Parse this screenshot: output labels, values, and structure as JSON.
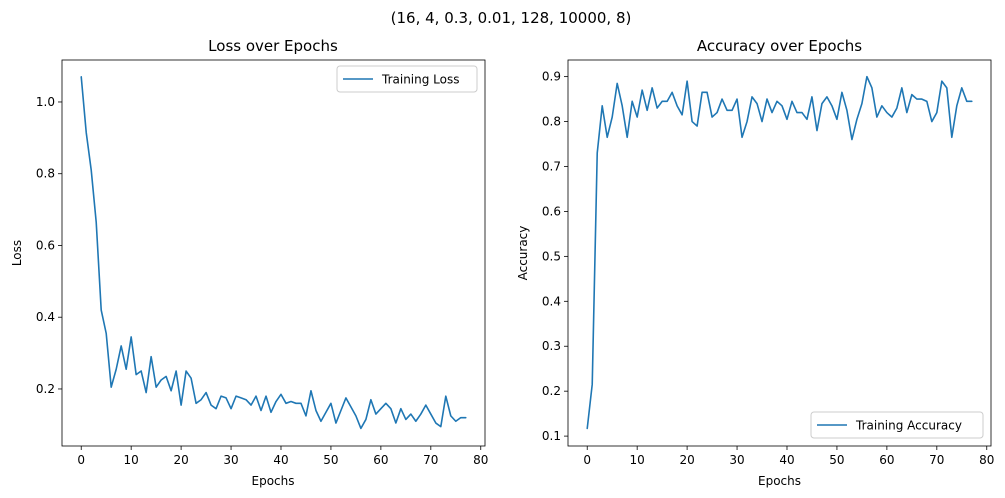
{
  "figure": {
    "suptitle": "(16, 4, 0.3, 0.01, 128, 10000, 8)"
  },
  "chart_data": [
    {
      "type": "line",
      "title": "Loss over Epochs",
      "xlabel": "Epochs",
      "ylabel": "Loss",
      "xlim": [
        -3.85,
        80.85
      ],
      "ylim": [
        0.041,
        1.117
      ],
      "xticks": [
        0,
        10,
        20,
        30,
        40,
        50,
        60,
        70,
        80
      ],
      "yticks": [
        0.2,
        0.4,
        0.6,
        0.8,
        1.0
      ],
      "ytick_labels": [
        "0.2",
        "0.4",
        "0.6",
        "0.8",
        "1.0"
      ],
      "grid": false,
      "legend_position": "top-right",
      "color": "#1f77b4",
      "series": [
        {
          "name": "Training Loss",
          "x": [
            0,
            1,
            2,
            3,
            4,
            5,
            6,
            7,
            8,
            9,
            10,
            11,
            12,
            13,
            14,
            15,
            16,
            17,
            18,
            19,
            20,
            21,
            22,
            23,
            24,
            25,
            26,
            27,
            28,
            29,
            30,
            31,
            32,
            33,
            34,
            35,
            36,
            37,
            38,
            39,
            40,
            41,
            42,
            43,
            44,
            45,
            46,
            47,
            48,
            49,
            50,
            51,
            52,
            53,
            54,
            55,
            56,
            57,
            58,
            59,
            60,
            61,
            62,
            63,
            64,
            65,
            66,
            67,
            68,
            69,
            70,
            71,
            72,
            73,
            74,
            75,
            76,
            77
          ],
          "values": [
            1.07,
            0.915,
            0.81,
            0.665,
            0.42,
            0.355,
            0.205,
            0.255,
            0.32,
            0.255,
            0.345,
            0.24,
            0.25,
            0.19,
            0.29,
            0.205,
            0.225,
            0.235,
            0.195,
            0.25,
            0.155,
            0.25,
            0.23,
            0.16,
            0.17,
            0.19,
            0.155,
            0.145,
            0.18,
            0.175,
            0.145,
            0.18,
            0.175,
            0.17,
            0.155,
            0.18,
            0.14,
            0.18,
            0.135,
            0.165,
            0.185,
            0.16,
            0.165,
            0.16,
            0.16,
            0.125,
            0.195,
            0.14,
            0.11,
            0.135,
            0.16,
            0.105,
            0.14,
            0.175,
            0.15,
            0.125,
            0.09,
            0.115,
            0.17,
            0.13,
            0.145,
            0.16,
            0.145,
            0.105,
            0.145,
            0.115,
            0.13,
            0.11,
            0.13,
            0.155,
            0.13,
            0.105,
            0.095,
            0.18,
            0.125,
            0.11,
            0.12,
            0.12
          ]
        }
      ]
    },
    {
      "type": "line",
      "title": "Accuracy over Epochs",
      "xlabel": "Epochs",
      "ylabel": "Accuracy",
      "xlim": [
        -3.85,
        80.85
      ],
      "ylim": [
        0.078,
        0.937
      ],
      "xticks": [
        0,
        10,
        20,
        30,
        40,
        50,
        60,
        70,
        80
      ],
      "yticks": [
        0.1,
        0.2,
        0.3,
        0.4,
        0.5,
        0.6,
        0.7,
        0.8,
        0.9
      ],
      "ytick_labels": [
        "0.1",
        "0.2",
        "0.3",
        "0.4",
        "0.5",
        "0.6",
        "0.7",
        "0.8",
        "0.9"
      ],
      "grid": false,
      "legend_position": "bottom-right",
      "color": "#1f77b4",
      "series": [
        {
          "name": "Training Accuracy",
          "x": [
            0,
            1,
            2,
            3,
            4,
            5,
            6,
            7,
            8,
            9,
            10,
            11,
            12,
            13,
            14,
            15,
            16,
            17,
            18,
            19,
            20,
            21,
            22,
            23,
            24,
            25,
            26,
            27,
            28,
            29,
            30,
            31,
            32,
            33,
            34,
            35,
            36,
            37,
            38,
            39,
            40,
            41,
            42,
            43,
            44,
            45,
            46,
            47,
            48,
            49,
            50,
            51,
            52,
            53,
            54,
            55,
            56,
            57,
            58,
            59,
            60,
            61,
            62,
            63,
            64,
            65,
            66,
            67,
            68,
            69,
            70,
            71,
            72,
            73,
            74,
            75,
            76,
            77
          ],
          "values": [
            0.117,
            0.215,
            0.73,
            0.835,
            0.765,
            0.81,
            0.885,
            0.835,
            0.765,
            0.845,
            0.81,
            0.87,
            0.825,
            0.875,
            0.83,
            0.845,
            0.845,
            0.865,
            0.835,
            0.815,
            0.89,
            0.8,
            0.79,
            0.865,
            0.865,
            0.81,
            0.82,
            0.85,
            0.825,
            0.825,
            0.85,
            0.765,
            0.8,
            0.855,
            0.84,
            0.8,
            0.85,
            0.82,
            0.845,
            0.835,
            0.805,
            0.845,
            0.82,
            0.82,
            0.805,
            0.855,
            0.78,
            0.84,
            0.855,
            0.835,
            0.805,
            0.865,
            0.825,
            0.76,
            0.805,
            0.84,
            0.9,
            0.875,
            0.81,
            0.835,
            0.82,
            0.81,
            0.83,
            0.875,
            0.82,
            0.86,
            0.85,
            0.85,
            0.845,
            0.8,
            0.82,
            0.89,
            0.875,
            0.765,
            0.835,
            0.875,
            0.845,
            0.845
          ]
        }
      ]
    }
  ]
}
